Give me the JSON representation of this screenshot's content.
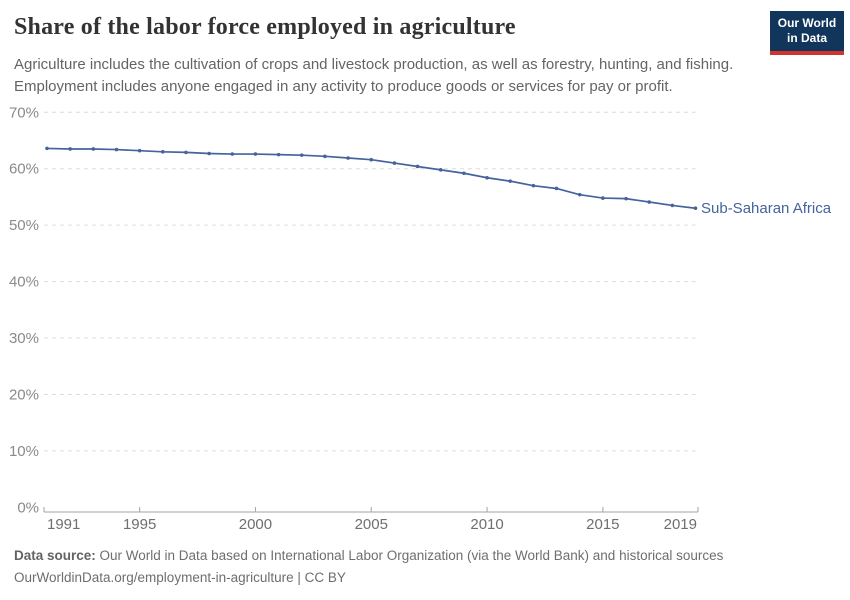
{
  "header": {
    "title": "Share of the labor force employed in agriculture",
    "subtitle_lines": [
      "Agriculture includes the cultivation of crops and livestock production, as well as forestry, hunting, and fishing.",
      "Employment includes anyone engaged in any activity to produce goods or services for pay or profit."
    ],
    "logo": {
      "line1": "Our World",
      "line2": "in Data",
      "bg_color": "#12355c",
      "stripe_color": "#d0342c"
    }
  },
  "chart_data": {
    "type": "line",
    "title": "Share of the labor force employed in agriculture",
    "xlabel": "",
    "ylabel": "",
    "xlim": [
      1991,
      2019
    ],
    "ylim": [
      0,
      70
    ],
    "xticks": [
      1991,
      1995,
      2000,
      2005,
      2010,
      2015,
      2019
    ],
    "yticks": [
      0,
      10,
      20,
      30,
      40,
      50,
      60,
      70
    ],
    "ytick_suffix": "%",
    "grid": "horizontal-dashed",
    "legend_position": "end-of-line-label",
    "x": [
      1991,
      1992,
      1993,
      1994,
      1995,
      1996,
      1997,
      1998,
      1999,
      2000,
      2001,
      2002,
      2003,
      2004,
      2005,
      2006,
      2007,
      2008,
      2009,
      2010,
      2011,
      2012,
      2013,
      2014,
      2015,
      2016,
      2017,
      2018,
      2019
    ],
    "series": [
      {
        "name": "Sub-Saharan Africa",
        "color": "#46639c",
        "values": [
          63.6,
          63.5,
          63.5,
          63.4,
          63.2,
          63.0,
          62.9,
          62.7,
          62.6,
          62.6,
          62.5,
          62.4,
          62.2,
          61.9,
          61.6,
          61.0,
          60.4,
          59.8,
          59.2,
          58.4,
          57.8,
          57.0,
          56.5,
          55.4,
          54.8,
          54.7,
          54.1,
          53.5,
          53.0
        ]
      }
    ],
    "colors": {
      "gridline": "#dcdcdc",
      "axis_line": "#a3a3a3",
      "ytick_label": "#8a8a8a",
      "xtick_label": "#6f6f6f"
    }
  },
  "footer": {
    "source_label": "Data source:",
    "source_text": " Our World in Data based on International Labor Organization (via the World Bank) and historical sources",
    "license_line": "OurWorldinData.org/employment-in-agriculture | CC BY"
  }
}
